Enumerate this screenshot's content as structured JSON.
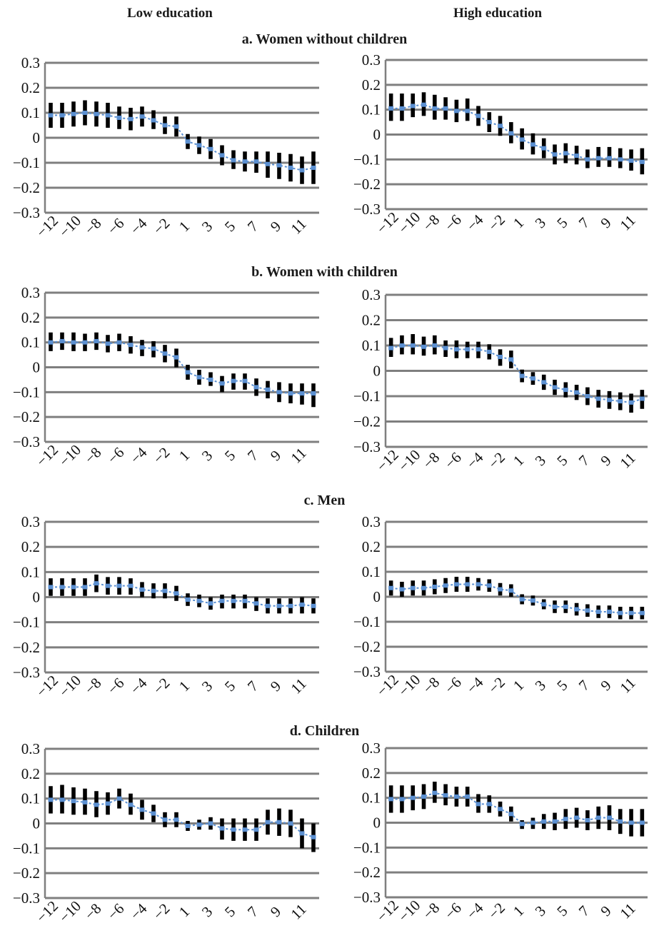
{
  "column_headers": {
    "left": "Low education",
    "right": "High education"
  },
  "panels": [
    {
      "title": "a. Women without children"
    },
    {
      "title": "b. Women with children"
    },
    {
      "title": "c. Men"
    },
    {
      "title": "d. Children"
    }
  ],
  "colors": {
    "grid": "#7f7f7f",
    "axis": "#7f7f7f",
    "bar": "#000000",
    "point": "#5b8fd0"
  },
  "chart_data": [
    {
      "type": "scatter",
      "panel": "a. Women without children",
      "education": "Low education",
      "ylim": [
        -0.3,
        0.3
      ],
      "yticks": [
        "-0.3",
        "-0.2",
        "-0.1",
        "0",
        "0.1",
        "0.2",
        "0.3"
      ],
      "xtick_labels": [
        "-12",
        "-10",
        "-8",
        "-6",
        "-4",
        "-2",
        "1",
        "3",
        "5",
        "7",
        "9",
        "11"
      ],
      "x": [
        -12,
        -11,
        -10,
        -9,
        -8,
        -7,
        -6,
        -5,
        -4,
        -3,
        -2,
        -1,
        1,
        2,
        3,
        4,
        5,
        6,
        7,
        8,
        9,
        10,
        11,
        12
      ],
      "y": [
        0.09,
        0.09,
        0.095,
        0.1,
        0.095,
        0.09,
        0.08,
        0.075,
        0.085,
        0.07,
        0.05,
        0.045,
        -0.015,
        -0.03,
        -0.045,
        -0.07,
        -0.09,
        -0.095,
        -0.095,
        -0.105,
        -0.11,
        -0.12,
        -0.13,
        -0.12
      ],
      "ci_low": [
        0.04,
        0.04,
        0.045,
        0.05,
        0.045,
        0.04,
        0.035,
        0.03,
        0.045,
        0.035,
        0.015,
        0.005,
        -0.045,
        -0.065,
        -0.085,
        -0.11,
        -0.125,
        -0.135,
        -0.14,
        -0.16,
        -0.165,
        -0.175,
        -0.185,
        -0.185
      ],
      "ci_high": [
        0.14,
        0.14,
        0.145,
        0.15,
        0.145,
        0.14,
        0.125,
        0.12,
        0.125,
        0.11,
        0.085,
        0.085,
        0.015,
        0.005,
        -0.005,
        -0.03,
        -0.05,
        -0.055,
        -0.055,
        -0.055,
        -0.06,
        -0.065,
        -0.075,
        -0.055
      ]
    },
    {
      "type": "scatter",
      "panel": "a. Women without children",
      "education": "High education",
      "ylim": [
        -0.3,
        0.3
      ],
      "yticks": [
        "-0.3",
        "-0.2",
        "-0.1",
        "0",
        "0.1",
        "0.2",
        "0.3"
      ],
      "xtick_labels": [
        "-12",
        "-10",
        "-8",
        "-6",
        "-4",
        "-2",
        "1",
        "3",
        "5",
        "7",
        "9",
        "11"
      ],
      "x": [
        -12,
        -11,
        -10,
        -9,
        -8,
        -7,
        -6,
        -5,
        -4,
        -3,
        -2,
        -1,
        1,
        2,
        3,
        4,
        5,
        6,
        7,
        8,
        9,
        10,
        11,
        12
      ],
      "y": [
        0.105,
        0.105,
        0.115,
        0.12,
        0.105,
        0.105,
        0.095,
        0.095,
        0.075,
        0.05,
        0.035,
        0.005,
        -0.02,
        -0.04,
        -0.055,
        -0.08,
        -0.075,
        -0.085,
        -0.1,
        -0.095,
        -0.095,
        -0.1,
        -0.105,
        -0.11
      ],
      "ci_low": [
        0.055,
        0.055,
        0.07,
        0.075,
        0.06,
        0.06,
        0.05,
        0.055,
        0.035,
        0.01,
        -0.005,
        -0.035,
        -0.06,
        -0.08,
        -0.095,
        -0.12,
        -0.115,
        -0.12,
        -0.135,
        -0.13,
        -0.13,
        -0.135,
        -0.145,
        -0.16
      ],
      "ci_high": [
        0.165,
        0.165,
        0.165,
        0.17,
        0.16,
        0.15,
        0.14,
        0.145,
        0.115,
        0.09,
        0.075,
        0.05,
        0.025,
        0.005,
        -0.015,
        -0.04,
        -0.035,
        -0.045,
        -0.06,
        -0.05,
        -0.05,
        -0.055,
        -0.06,
        -0.055
      ]
    },
    {
      "type": "scatter",
      "panel": "b. Women with children",
      "education": "Low education",
      "ylim": [
        -0.3,
        0.3
      ],
      "yticks": [
        "-0.3",
        "-0.2",
        "-0.1",
        "0",
        "0.1",
        "0.2",
        "0.3"
      ],
      "xtick_labels": [
        "-12",
        "-10",
        "-8",
        "-6",
        "-4",
        "-2",
        "1",
        "3",
        "5",
        "7",
        "9",
        "11"
      ],
      "x": [
        -12,
        -11,
        -10,
        -9,
        -8,
        -7,
        -6,
        -5,
        -4,
        -3,
        -2,
        -1,
        1,
        2,
        3,
        4,
        5,
        6,
        7,
        8,
        9,
        10,
        11,
        12
      ],
      "y": [
        0.1,
        0.105,
        0.1,
        0.1,
        0.105,
        0.095,
        0.1,
        0.09,
        0.08,
        0.075,
        0.055,
        0.04,
        -0.02,
        -0.04,
        -0.05,
        -0.065,
        -0.055,
        -0.055,
        -0.08,
        -0.09,
        -0.1,
        -0.105,
        -0.105,
        -0.105
      ],
      "ci_low": [
        0.065,
        0.07,
        0.065,
        0.065,
        0.07,
        0.06,
        0.065,
        0.055,
        0.045,
        0.04,
        0.02,
        0.0,
        -0.05,
        -0.07,
        -0.075,
        -0.1,
        -0.09,
        -0.09,
        -0.115,
        -0.125,
        -0.14,
        -0.145,
        -0.15,
        -0.16
      ],
      "ci_high": [
        0.14,
        0.14,
        0.14,
        0.135,
        0.14,
        0.13,
        0.135,
        0.125,
        0.11,
        0.105,
        0.09,
        0.075,
        0.01,
        -0.01,
        -0.02,
        -0.035,
        -0.025,
        -0.025,
        -0.045,
        -0.055,
        -0.06,
        -0.065,
        -0.065,
        -0.065
      ]
    },
    {
      "type": "scatter",
      "panel": "b. Women with children",
      "education": "High education",
      "ylim": [
        -0.3,
        0.3
      ],
      "yticks": [
        "-0.3",
        "-0.2",
        "-0.1",
        "0",
        "0.1",
        "0.2",
        "0.3"
      ],
      "xtick_labels": [
        "-12",
        "-10",
        "-8",
        "-6",
        "-4",
        "-2",
        "1",
        "3",
        "5",
        "7",
        "9",
        "11"
      ],
      "x": [
        -12,
        -11,
        -10,
        -9,
        -8,
        -7,
        -6,
        -5,
        -4,
        -3,
        -2,
        -1,
        1,
        2,
        3,
        4,
        5,
        6,
        7,
        8,
        9,
        10,
        11,
        12
      ],
      "y": [
        0.09,
        0.1,
        0.1,
        0.095,
        0.1,
        0.09,
        0.085,
        0.085,
        0.085,
        0.075,
        0.055,
        0.045,
        -0.02,
        -0.03,
        -0.045,
        -0.065,
        -0.075,
        -0.085,
        -0.1,
        -0.11,
        -0.115,
        -0.12,
        -0.125,
        -0.11
      ],
      "ci_low": [
        0.055,
        0.065,
        0.065,
        0.06,
        0.065,
        0.055,
        0.05,
        0.05,
        0.05,
        0.045,
        0.02,
        0.01,
        -0.045,
        -0.055,
        -0.075,
        -0.095,
        -0.105,
        -0.115,
        -0.135,
        -0.145,
        -0.15,
        -0.155,
        -0.165,
        -0.15
      ],
      "ci_high": [
        0.13,
        0.14,
        0.145,
        0.135,
        0.14,
        0.12,
        0.12,
        0.115,
        0.115,
        0.105,
        0.085,
        0.08,
        0.005,
        -0.005,
        -0.015,
        -0.035,
        -0.045,
        -0.055,
        -0.065,
        -0.075,
        -0.08,
        -0.085,
        -0.09,
        -0.075
      ]
    },
    {
      "type": "scatter",
      "panel": "c. Men",
      "education": "Low education",
      "ylim": [
        -0.3,
        0.3
      ],
      "yticks": [
        "-0.3",
        "-0.2",
        "-0.1",
        "0",
        "0.1",
        "0.2",
        "0.3"
      ],
      "xtick_labels": [
        "-12",
        "-10",
        "-8",
        "-6",
        "-4",
        "-2",
        "1",
        "3",
        "5",
        "7",
        "9",
        "11"
      ],
      "x": [
        -12,
        -11,
        -10,
        -9,
        -8,
        -7,
        -6,
        -5,
        -4,
        -3,
        -2,
        -1,
        1,
        2,
        3,
        4,
        5,
        6,
        7,
        8,
        9,
        10,
        11,
        12
      ],
      "y": [
        0.04,
        0.04,
        0.04,
        0.04,
        0.055,
        0.045,
        0.045,
        0.045,
        0.03,
        0.025,
        0.025,
        0.015,
        -0.01,
        -0.015,
        -0.025,
        -0.015,
        -0.015,
        -0.015,
        -0.025,
        -0.035,
        -0.035,
        -0.035,
        -0.03,
        -0.035
      ],
      "ci_low": [
        0.005,
        0.005,
        0.005,
        0.005,
        0.02,
        0.01,
        0.01,
        0.01,
        0.0,
        -0.005,
        -0.005,
        -0.015,
        -0.035,
        -0.04,
        -0.05,
        -0.045,
        -0.045,
        -0.045,
        -0.055,
        -0.065,
        -0.065,
        -0.065,
        -0.065,
        -0.065
      ],
      "ci_high": [
        0.075,
        0.075,
        0.075,
        0.075,
        0.09,
        0.08,
        0.08,
        0.075,
        0.06,
        0.055,
        0.055,
        0.045,
        0.015,
        0.01,
        0.0,
        0.01,
        0.01,
        0.01,
        0.0,
        -0.005,
        -0.005,
        -0.005,
        0.0,
        -0.005
      ]
    },
    {
      "type": "scatter",
      "panel": "c. Men",
      "education": "High education",
      "ylim": [
        -0.3,
        0.3
      ],
      "yticks": [
        "-0.3",
        "-0.2",
        "-0.1",
        "0",
        "0.1",
        "0.2",
        "0.3"
      ],
      "xtick_labels": [
        "-12",
        "-10",
        "-8",
        "-6",
        "-4",
        "-2",
        "1",
        "3",
        "5",
        "7",
        "9",
        "11"
      ],
      "x": [
        -12,
        -11,
        -10,
        -9,
        -8,
        -7,
        -6,
        -5,
        -4,
        -3,
        -2,
        -1,
        1,
        2,
        3,
        4,
        5,
        6,
        7,
        8,
        9,
        10,
        11,
        12
      ],
      "y": [
        0.035,
        0.03,
        0.035,
        0.035,
        0.04,
        0.045,
        0.05,
        0.05,
        0.05,
        0.045,
        0.03,
        0.025,
        -0.01,
        -0.015,
        -0.03,
        -0.04,
        -0.04,
        -0.05,
        -0.055,
        -0.06,
        -0.06,
        -0.065,
        -0.065,
        -0.065
      ],
      "ci_low": [
        0.005,
        0.0,
        0.005,
        0.005,
        0.01,
        0.015,
        0.02,
        0.02,
        0.025,
        0.02,
        0.005,
        0.0,
        -0.03,
        -0.035,
        -0.05,
        -0.065,
        -0.065,
        -0.075,
        -0.08,
        -0.085,
        -0.085,
        -0.09,
        -0.09,
        -0.09
      ],
      "ci_high": [
        0.065,
        0.06,
        0.065,
        0.065,
        0.07,
        0.075,
        0.08,
        0.08,
        0.075,
        0.07,
        0.055,
        0.05,
        0.01,
        0.005,
        -0.01,
        -0.015,
        -0.015,
        -0.025,
        -0.03,
        -0.035,
        -0.035,
        -0.04,
        -0.04,
        -0.04
      ]
    },
    {
      "type": "scatter",
      "panel": "d. Children",
      "education": "Low education",
      "ylim": [
        -0.3,
        0.3
      ],
      "yticks": [
        "-0.3",
        "-0.2",
        "-0.1",
        "0",
        "0.1",
        "0.2",
        "0.3"
      ],
      "xtick_labels": [
        "-12",
        "-10",
        "-8",
        "-6",
        "-4",
        "-2",
        "1",
        "3",
        "5",
        "7",
        "9",
        "11"
      ],
      "x": [
        -12,
        -11,
        -10,
        -9,
        -8,
        -7,
        -6,
        -5,
        -4,
        -3,
        -2,
        -1,
        1,
        2,
        3,
        4,
        5,
        6,
        7,
        8,
        9,
        10,
        11,
        12
      ],
      "y": [
        0.095,
        0.095,
        0.09,
        0.085,
        0.075,
        0.08,
        0.1,
        0.075,
        0.055,
        0.04,
        0.015,
        0.015,
        -0.01,
        -0.005,
        0.0,
        -0.02,
        -0.025,
        -0.025,
        -0.025,
        0.005,
        0.005,
        0.0,
        -0.04,
        -0.055
      ],
      "ci_low": [
        0.04,
        0.04,
        0.035,
        0.035,
        0.025,
        0.035,
        0.06,
        0.035,
        0.015,
        0.005,
        -0.015,
        -0.015,
        -0.03,
        -0.025,
        -0.025,
        -0.065,
        -0.07,
        -0.07,
        -0.07,
        -0.045,
        -0.05,
        -0.055,
        -0.1,
        -0.115
      ],
      "ci_high": [
        0.15,
        0.155,
        0.145,
        0.14,
        0.13,
        0.125,
        0.14,
        0.12,
        0.095,
        0.075,
        0.045,
        0.045,
        0.01,
        0.015,
        0.025,
        0.02,
        0.02,
        0.02,
        0.02,
        0.055,
        0.06,
        0.055,
        0.02,
        0.0
      ]
    },
    {
      "type": "scatter",
      "panel": "d. Children",
      "education": "High education",
      "ylim": [
        -0.3,
        0.3
      ],
      "yticks": [
        "-0.3",
        "-0.2",
        "-0.1",
        "0",
        "0.1",
        "0.2",
        "0.3"
      ],
      "xtick_labels": [
        "-12",
        "-10",
        "-8",
        "-6",
        "-4",
        "-2",
        "1",
        "3",
        "5",
        "7",
        "9",
        "11"
      ],
      "x": [
        -12,
        -11,
        -10,
        -9,
        -8,
        -7,
        -6,
        -5,
        -4,
        -3,
        -2,
        -1,
        1,
        2,
        3,
        4,
        5,
        6,
        7,
        8,
        9,
        10,
        11,
        12
      ],
      "y": [
        0.095,
        0.095,
        0.1,
        0.105,
        0.12,
        0.11,
        0.105,
        0.105,
        0.075,
        0.075,
        0.055,
        0.035,
        -0.005,
        0.0,
        0.005,
        0.005,
        0.015,
        0.02,
        0.01,
        0.02,
        0.02,
        0.005,
        0.0,
        0.0
      ],
      "ci_low": [
        0.04,
        0.04,
        0.05,
        0.055,
        0.08,
        0.07,
        0.065,
        0.065,
        0.04,
        0.04,
        0.025,
        0.005,
        -0.025,
        -0.025,
        -0.025,
        -0.03,
        -0.025,
        -0.02,
        -0.03,
        -0.025,
        -0.03,
        -0.045,
        -0.055,
        -0.055
      ],
      "ci_high": [
        0.15,
        0.15,
        0.15,
        0.155,
        0.165,
        0.155,
        0.145,
        0.145,
        0.115,
        0.11,
        0.085,
        0.065,
        0.01,
        0.02,
        0.035,
        0.04,
        0.055,
        0.06,
        0.05,
        0.065,
        0.07,
        0.055,
        0.055,
        0.055
      ]
    }
  ]
}
